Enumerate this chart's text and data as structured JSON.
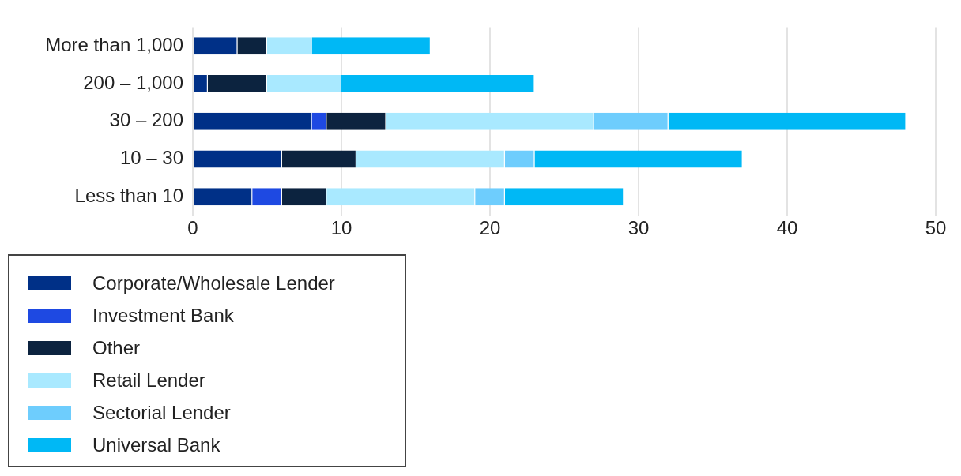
{
  "chart_data": {
    "type": "bar",
    "orientation": "horizontal",
    "stacked": true,
    "categories": [
      "More than 1,000",
      "200 – 1,000",
      "30 – 200",
      "10 – 30",
      "Less than 10"
    ],
    "series": [
      {
        "name": "Corporate/Wholesale Lender",
        "color": "#003087",
        "values": [
          3,
          1,
          8,
          6,
          4
        ]
      },
      {
        "name": "Investment Bank",
        "color": "#1e49e2",
        "values": [
          0,
          0,
          1,
          0,
          2
        ]
      },
      {
        "name": "Other",
        "color": "#0c233f",
        "values": [
          2,
          4,
          4,
          5,
          3
        ]
      },
      {
        "name": "Retail Lender",
        "color": "#a9e9ff",
        "values": [
          3,
          5,
          14,
          10,
          10
        ]
      },
      {
        "name": "Sectorial Lender",
        "color": "#6ecdfd",
        "values": [
          0,
          0,
          5,
          2,
          2
        ]
      },
      {
        "name": "Universal Bank",
        "color": "#00b8f5",
        "values": [
          8,
          13,
          16,
          14,
          8
        ]
      }
    ],
    "xlim": [
      0,
      50
    ],
    "xticks": [
      0,
      10,
      20,
      30,
      40,
      50
    ],
    "grid": "x",
    "legend": "bottom left"
  }
}
